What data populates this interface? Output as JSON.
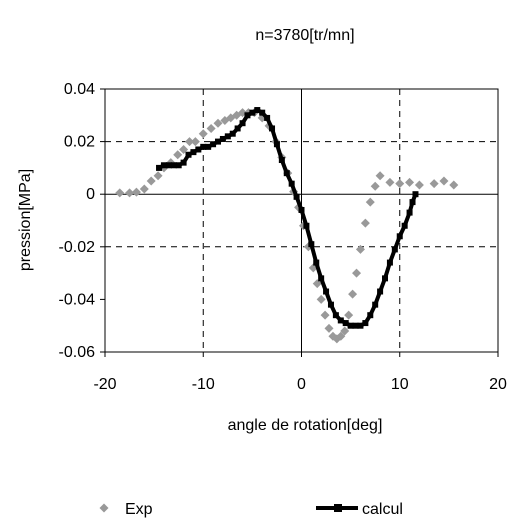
{
  "chart_data": {
    "type": "scatter",
    "title": "n=3780[tr/mn]",
    "xlabel": "angle de rotation[deg]",
    "ylabel": "pression[MPa]",
    "xlim": [
      -20,
      20
    ],
    "ylim": [
      -0.06,
      0.04
    ],
    "xticks": [
      -20,
      -10,
      0,
      10,
      20
    ],
    "yticks": [
      -0.06,
      -0.04,
      -0.02,
      0,
      0.02,
      0.04
    ],
    "xtick_labels": [
      "-20",
      "-10",
      "0",
      "10",
      "20"
    ],
    "ytick_labels": [
      "-0.06",
      "-0.04",
      "-0.02",
      "0",
      "0.02",
      "0.04"
    ],
    "grid": "dashed at x=-10 and x=10, y=0.02 and y=-0.02; solid zero lines",
    "legend_position": "bottom",
    "series": [
      {
        "name": "Exp",
        "type": "scatter",
        "marker": "diamond",
        "color": "#999999",
        "points": [
          [
            -18.5,
            0.0005
          ],
          [
            -17.5,
            0.0005
          ],
          [
            -16.8,
            0.0008
          ],
          [
            -16.0,
            0.002
          ],
          [
            -15.3,
            0.005
          ],
          [
            -14.6,
            0.007
          ],
          [
            -14.0,
            0.01
          ],
          [
            -13.3,
            0.012
          ],
          [
            -12.6,
            0.015
          ],
          [
            -12.0,
            0.017
          ],
          [
            -11.4,
            0.02
          ],
          [
            -10.8,
            0.02
          ],
          [
            -10.0,
            0.023
          ],
          [
            -9.2,
            0.025
          ],
          [
            -8.5,
            0.027
          ],
          [
            -7.8,
            0.028
          ],
          [
            -7.2,
            0.029
          ],
          [
            -6.6,
            0.03
          ],
          [
            -6.0,
            0.031
          ],
          [
            -5.4,
            0.031
          ],
          [
            -4.8,
            0.031
          ],
          [
            -4.0,
            0.029
          ],
          [
            -3.3,
            0.026
          ],
          [
            -2.6,
            0.02
          ],
          [
            -2.0,
            0.014
          ],
          [
            -1.4,
            0.008
          ],
          [
            -0.8,
            0.001
          ],
          [
            -0.3,
            -0.005
          ],
          [
            0.2,
            -0.012
          ],
          [
            0.7,
            -0.02
          ],
          [
            1.2,
            -0.028
          ],
          [
            1.6,
            -0.034
          ],
          [
            2.0,
            -0.04
          ],
          [
            2.4,
            -0.046
          ],
          [
            2.8,
            -0.051
          ],
          [
            3.2,
            -0.054
          ],
          [
            3.6,
            -0.055
          ],
          [
            4.0,
            -0.054
          ],
          [
            4.4,
            -0.052
          ],
          [
            4.8,
            -0.046
          ],
          [
            5.2,
            -0.038
          ],
          [
            5.6,
            -0.03
          ],
          [
            6.0,
            -0.021
          ],
          [
            6.5,
            -0.011
          ],
          [
            7.0,
            -0.003
          ],
          [
            7.5,
            0.003
          ],
          [
            8.0,
            0.007
          ],
          [
            9.0,
            0.0045
          ],
          [
            10.0,
            0.004
          ],
          [
            11.0,
            0.0045
          ],
          [
            12.0,
            0.0035
          ],
          [
            13.5,
            0.004
          ],
          [
            14.5,
            0.005
          ],
          [
            15.5,
            0.0035
          ]
        ]
      },
      {
        "name": "calcul",
        "type": "line",
        "marker": "square",
        "color": "#000000",
        "points": [
          [
            -14.5,
            0.01
          ],
          [
            -14.0,
            0.011
          ],
          [
            -13.5,
            0.011
          ],
          [
            -13.0,
            0.011
          ],
          [
            -12.5,
            0.011
          ],
          [
            -12.0,
            0.012
          ],
          [
            -11.5,
            0.015
          ],
          [
            -11.0,
            0.016
          ],
          [
            -10.5,
            0.017
          ],
          [
            -10.0,
            0.018
          ],
          [
            -9.5,
            0.018
          ],
          [
            -9.0,
            0.019
          ],
          [
            -8.5,
            0.02
          ],
          [
            -8.0,
            0.021
          ],
          [
            -7.5,
            0.022
          ],
          [
            -7.0,
            0.023
          ],
          [
            -6.5,
            0.025
          ],
          [
            -6.0,
            0.027
          ],
          [
            -5.5,
            0.03
          ],
          [
            -5.0,
            0.031
          ],
          [
            -4.5,
            0.032
          ],
          [
            -4.0,
            0.031
          ],
          [
            -3.5,
            0.029
          ],
          [
            -3.0,
            0.025
          ],
          [
            -2.5,
            0.019
          ],
          [
            -2.0,
            0.013
          ],
          [
            -1.5,
            0.008
          ],
          [
            -1.0,
            0.004
          ],
          [
            -0.5,
            -0.001
          ],
          [
            0.0,
            -0.006
          ],
          [
            0.5,
            -0.012
          ],
          [
            1.0,
            -0.019
          ],
          [
            1.5,
            -0.026
          ],
          [
            2.0,
            -0.032
          ],
          [
            2.5,
            -0.037
          ],
          [
            3.0,
            -0.042
          ],
          [
            3.5,
            -0.046
          ],
          [
            4.0,
            -0.048
          ],
          [
            4.5,
            -0.049
          ],
          [
            5.0,
            -0.05
          ],
          [
            5.5,
            -0.05
          ],
          [
            6.0,
            -0.05
          ],
          [
            6.5,
            -0.049
          ],
          [
            7.0,
            -0.046
          ],
          [
            7.5,
            -0.042
          ],
          [
            8.0,
            -0.037
          ],
          [
            8.5,
            -0.032
          ],
          [
            9.0,
            -0.026
          ],
          [
            9.5,
            -0.021
          ],
          [
            10.0,
            -0.016
          ],
          [
            10.5,
            -0.012
          ],
          [
            11.0,
            -0.007
          ],
          [
            11.3,
            -0.003
          ],
          [
            11.6,
            0.0
          ]
        ]
      }
    ]
  }
}
